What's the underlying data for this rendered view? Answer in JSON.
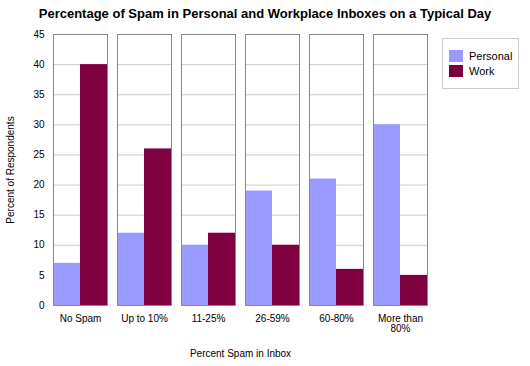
{
  "chart_data": {
    "type": "bar",
    "title": "Percentage of Spam in Personal and Workplace Inboxes on a Typical Day",
    "xlabel": "Percent Spam in Inbox",
    "ylabel": "Percent of Respondents",
    "categories": [
      "No Spam",
      "Up to 10%",
      "11-25%",
      "26-59%",
      "60-80%",
      "More than 80%"
    ],
    "series": [
      {
        "name": "Personal",
        "color": "#9999ff",
        "values": [
          7,
          12,
          10,
          19,
          21,
          30
        ]
      },
      {
        "name": "Work",
        "color": "#7f003f",
        "values": [
          40,
          26,
          12,
          10,
          6,
          5
        ]
      }
    ],
    "ylim": [
      0,
      45
    ],
    "yticks": [
      0,
      5,
      10,
      15,
      20,
      25,
      30,
      35,
      40,
      45
    ],
    "grid": true,
    "legend": "right"
  }
}
